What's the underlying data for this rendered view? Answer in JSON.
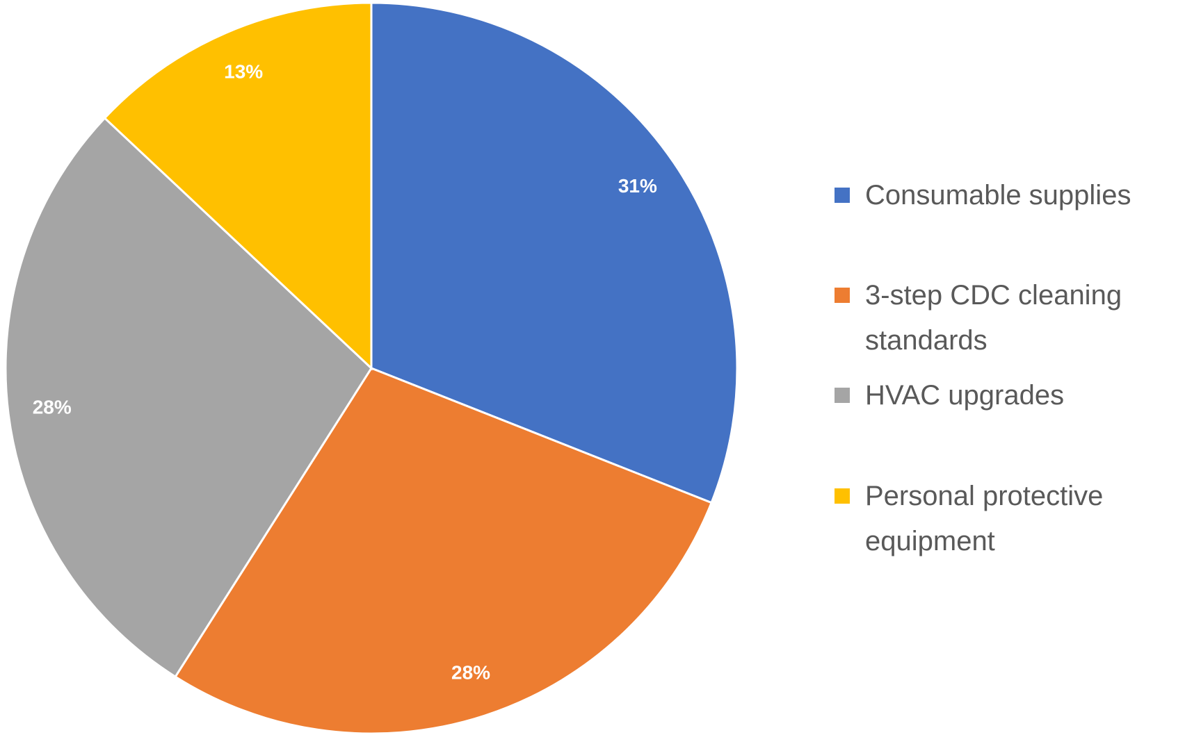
{
  "chart_data": {
    "type": "pie",
    "categories": [
      "Consumable supplies",
      "3-step CDC cleaning standards",
      "HVAC upgrades",
      "Personal protective equipment"
    ],
    "values": [
      31,
      28,
      28,
      13
    ],
    "value_labels": [
      "31%",
      "28%",
      "28%",
      "13%"
    ],
    "colors": [
      "#4472c4",
      "#ed7d31",
      "#a5a5a5",
      "#ffc000"
    ],
    "legend": "right"
  }
}
